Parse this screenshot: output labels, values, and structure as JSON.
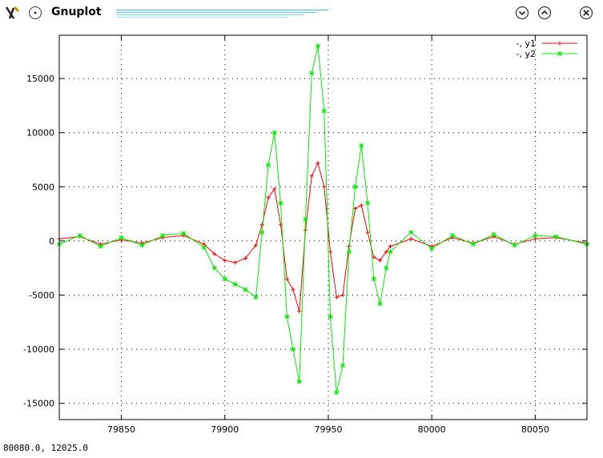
{
  "window": {
    "title": "Gnuplot",
    "icons": [
      "gnuplot-app-icon",
      "window-menu-icon",
      "minimize-icon",
      "maximize-icon",
      "close-icon"
    ]
  },
  "status_text": "80080.0,  12025.0",
  "chart_data": {
    "type": "line",
    "title": "",
    "xlabel": "",
    "ylabel": "",
    "xlim": [
      79820,
      80075
    ],
    "ylim": [
      -16500,
      19000
    ],
    "xticks": [
      79850,
      79900,
      79950,
      80000,
      80050
    ],
    "yticks": [
      -15000,
      -10000,
      -5000,
      0,
      5000,
      10000,
      15000
    ],
    "grid": true,
    "legend_position": "top-right",
    "series": [
      {
        "name": "-, y1",
        "color": "#ff0000",
        "marker": "plus",
        "x": [
          79820,
          79830,
          79840,
          79850,
          79860,
          79870,
          79880,
          79890,
          79895,
          79900,
          79905,
          79910,
          79915,
          79918,
          79921,
          79924,
          79927,
          79930,
          79933,
          79936,
          79939,
          79942,
          79945,
          79948,
          79951,
          79954,
          79957,
          79960,
          79963,
          79966,
          79969,
          79972,
          79975,
          79978,
          79980,
          79990,
          80000,
          80010,
          80020,
          80030,
          80040,
          80050,
          80060,
          80075
        ],
        "values": [
          200,
          400,
          -300,
          100,
          -200,
          300,
          500,
          -300,
          -1200,
          -1800,
          -2000,
          -1600,
          -400,
          1500,
          4000,
          4800,
          1500,
          -3500,
          -4500,
          -6500,
          1000,
          6000,
          7200,
          5000,
          -1000,
          -5200,
          -5000,
          -500,
          3000,
          3300,
          800,
          -1500,
          -1800,
          -1000,
          -500,
          200,
          -500,
          300,
          -200,
          400,
          -300,
          200,
          300,
          -200
        ]
      },
      {
        "name": "-, y2",
        "color": "#00ee00",
        "marker": "x",
        "x": [
          79820,
          79830,
          79840,
          79850,
          79860,
          79870,
          79880,
          79890,
          79895,
          79900,
          79905,
          79910,
          79915,
          79918,
          79921,
          79924,
          79927,
          79930,
          79933,
          79936,
          79939,
          79942,
          79945,
          79948,
          79951,
          79954,
          79957,
          79960,
          79963,
          79966,
          79969,
          79972,
          79975,
          79978,
          79980,
          79990,
          80000,
          80010,
          80020,
          80030,
          80040,
          80050,
          80060,
          80075
        ],
        "values": [
          -300,
          500,
          -500,
          300,
          -400,
          500,
          700,
          -600,
          -2500,
          -3500,
          -4000,
          -4500,
          -5200,
          800,
          7000,
          10000,
          3500,
          -7000,
          -10000,
          -13000,
          2000,
          15500,
          18000,
          12000,
          -7000,
          -14000,
          -11500,
          -1000,
          5000,
          8800,
          3500,
          -3500,
          -5800,
          -2500,
          -1000,
          800,
          -700,
          500,
          -300,
          600,
          -400,
          500,
          400,
          -300
        ]
      }
    ]
  }
}
